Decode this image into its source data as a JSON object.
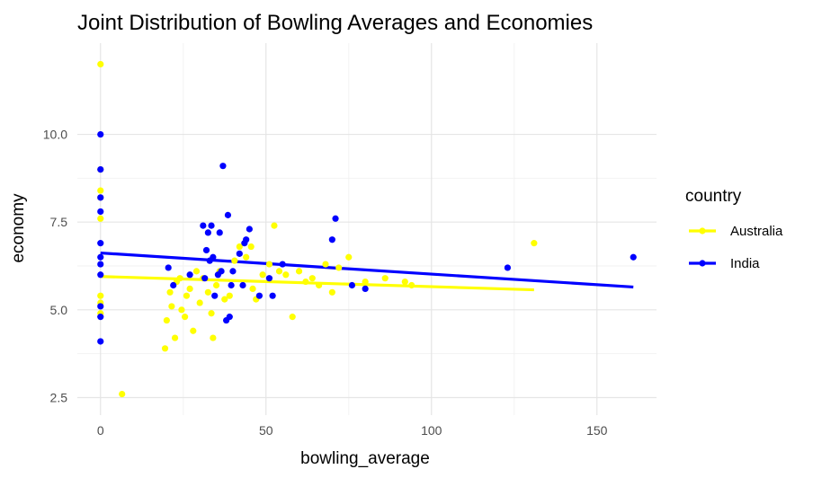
{
  "chart_data": {
    "type": "scatter",
    "title": "Joint Distribution of Bowling Averages and Economies",
    "xlabel": "bowling_average",
    "ylabel": "economy",
    "xlim": [
      -7,
      168
    ],
    "ylim": [
      2.0,
      12.6
    ],
    "x_ticks": [
      0,
      50,
      100,
      150
    ],
    "x_tick_labels": [
      "0",
      "50",
      "100",
      "150"
    ],
    "y_ticks": [
      2.5,
      5.0,
      7.5,
      10.0
    ],
    "y_tick_labels": [
      "2.5",
      "5.0",
      "7.5",
      "10.0"
    ],
    "grid": true,
    "legend": {
      "title": "country",
      "position": "right"
    },
    "series": [
      {
        "name": "Australia",
        "color": "#FFFF00",
        "points": [
          [
            0,
            12.0
          ],
          [
            0,
            9.0
          ],
          [
            0,
            8.4
          ],
          [
            0,
            8.2
          ],
          [
            0,
            7.6
          ],
          [
            0,
            5.4
          ],
          [
            0,
            5.2
          ],
          [
            0,
            4.9
          ],
          [
            6.5,
            2.6
          ],
          [
            19.5,
            3.9
          ],
          [
            20,
            4.7
          ],
          [
            21,
            5.5
          ],
          [
            21.5,
            5.1
          ],
          [
            22.5,
            4.2
          ],
          [
            23,
            5.8
          ],
          [
            24,
            5.9
          ],
          [
            24.5,
            5.0
          ],
          [
            25.5,
            4.8
          ],
          [
            26,
            5.4
          ],
          [
            27,
            5.6
          ],
          [
            28,
            4.4
          ],
          [
            29,
            6.1
          ],
          [
            30,
            5.2
          ],
          [
            31,
            5.9
          ],
          [
            32.5,
            5.5
          ],
          [
            33.5,
            4.9
          ],
          [
            34,
            4.2
          ],
          [
            35,
            5.7
          ],
          [
            36,
            6.1
          ],
          [
            37.5,
            5.3
          ],
          [
            39,
            5.4
          ],
          [
            40.5,
            6.4
          ],
          [
            42,
            6.8
          ],
          [
            44,
            6.5
          ],
          [
            45.5,
            6.8
          ],
          [
            46,
            5.6
          ],
          [
            47,
            5.3
          ],
          [
            49,
            6.0
          ],
          [
            51,
            6.3
          ],
          [
            52.5,
            7.4
          ],
          [
            54,
            6.1
          ],
          [
            56,
            6.0
          ],
          [
            58,
            4.8
          ],
          [
            60,
            6.1
          ],
          [
            62,
            5.8
          ],
          [
            64,
            5.9
          ],
          [
            66,
            5.7
          ],
          [
            68,
            6.3
          ],
          [
            70,
            5.5
          ],
          [
            72,
            6.2
          ],
          [
            75,
            6.5
          ],
          [
            80,
            5.8
          ],
          [
            86,
            5.9
          ],
          [
            92,
            5.8
          ],
          [
            94,
            5.7
          ],
          [
            131,
            6.9
          ]
        ],
        "trend": {
          "x": [
            0,
            131
          ],
          "y": [
            5.95,
            5.57
          ]
        }
      },
      {
        "name": "India",
        "color": "#0000FF",
        "points": [
          [
            0,
            10.0
          ],
          [
            0,
            9.0
          ],
          [
            0,
            8.2
          ],
          [
            0,
            7.8
          ],
          [
            0,
            6.9
          ],
          [
            0,
            6.5
          ],
          [
            0,
            6.3
          ],
          [
            0,
            6.0
          ],
          [
            0,
            5.1
          ],
          [
            0,
            4.8
          ],
          [
            0,
            4.1
          ],
          [
            20.5,
            6.2
          ],
          [
            22,
            5.7
          ],
          [
            27,
            6.0
          ],
          [
            31,
            7.4
          ],
          [
            31.5,
            5.9
          ],
          [
            32,
            6.7
          ],
          [
            32.5,
            7.2
          ],
          [
            33,
            6.4
          ],
          [
            33.5,
            7.4
          ],
          [
            34,
            6.5
          ],
          [
            34.5,
            5.4
          ],
          [
            35.5,
            6.0
          ],
          [
            36,
            7.2
          ],
          [
            36.5,
            6.1
          ],
          [
            37,
            9.1
          ],
          [
            38,
            4.7
          ],
          [
            38.5,
            7.7
          ],
          [
            39,
            4.8
          ],
          [
            39.5,
            5.7
          ],
          [
            40,
            6.1
          ],
          [
            42,
            6.6
          ],
          [
            43,
            5.7
          ],
          [
            43.5,
            6.9
          ],
          [
            44,
            7.0
          ],
          [
            45,
            7.3
          ],
          [
            48,
            5.4
          ],
          [
            51,
            5.9
          ],
          [
            52,
            5.4
          ],
          [
            55,
            6.3
          ],
          [
            70,
            7.0
          ],
          [
            71,
            7.6
          ],
          [
            76,
            5.7
          ],
          [
            80,
            5.6
          ],
          [
            123,
            6.2
          ],
          [
            161,
            6.5
          ]
        ],
        "trend": {
          "x": [
            0,
            161
          ],
          "y": [
            6.62,
            5.65
          ]
        }
      }
    ]
  }
}
